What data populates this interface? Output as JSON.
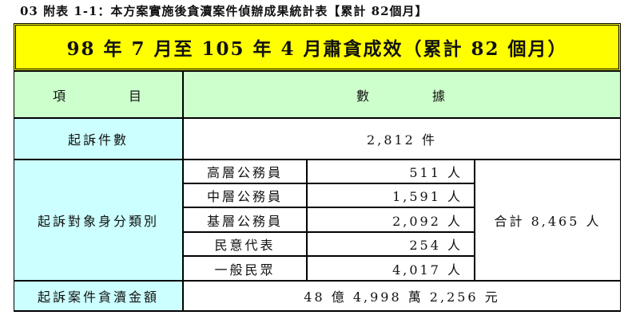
{
  "caption": "03 附表 1-1：本方案實施後貪瀆案件偵辦成果統計表【累計 82個月】",
  "banner": "98 年 7 月至 105 年 4 月肅貪成效（累計 82 個月）",
  "header": {
    "item": "項　　　　目",
    "data": "數　　　　據"
  },
  "indicted_cases": {
    "label": "起訴件數",
    "value": "2,812 件"
  },
  "by_identity": {
    "label": "起訴對象身分類別",
    "rows": [
      {
        "label": "高層公務員",
        "value": "511 人"
      },
      {
        "label": "中層公務員",
        "value": "1,591 人"
      },
      {
        "label": "基層公務員",
        "value": "2,092 人"
      },
      {
        "label": "民意代表",
        "value": "254 人"
      },
      {
        "label": "一般民眾",
        "value": "4,017 人"
      }
    ],
    "total": "合計 8,465 人"
  },
  "amount": {
    "label": "起訴案件貪瀆金額",
    "value": "48 億 4,998 萬 2,256 元"
  },
  "colors": {
    "banner": "#ffff00",
    "header": "#ccffcc",
    "label": "#ccffff"
  }
}
